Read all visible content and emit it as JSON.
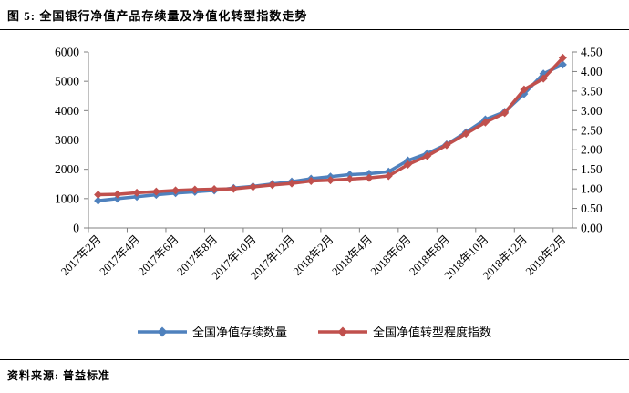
{
  "figure": {
    "title": "图 5: 全国银行净值产品存续量及净值化转型指数走势",
    "source_label": "资料来源: 普益标准"
  },
  "chart_data": {
    "type": "line",
    "title": "全国银行净值产品存续量及净值化转型指数走势",
    "categories": [
      "2017年2月",
      "2017年3月",
      "2017年4月",
      "2017年5月",
      "2017年6月",
      "2017年7月",
      "2017年8月",
      "2017年9月",
      "2017年10月",
      "2017年11月",
      "2017年12月",
      "2018年1月",
      "2018年2月",
      "2018年3月",
      "2018年4月",
      "2018年5月",
      "2018年6月",
      "2018年7月",
      "2018年8月",
      "2018年9月",
      "2018年10月",
      "2018年11月",
      "2018年12月",
      "2019年1月",
      "2019年2月"
    ],
    "x_tick_labels": [
      "2017年2月",
      "2017年4月",
      "2017年6月",
      "2017年8月",
      "2017年10月",
      "2017年12月",
      "2018年2月",
      "2018年4月",
      "2018年6月",
      "2018年8月",
      "2018年10月",
      "2018年12月",
      "2019年2月"
    ],
    "series": [
      {
        "name": "全国净值存续数量",
        "axis": "left",
        "color": "#4F81BD",
        "marker": "diamond",
        "values": [
          930,
          1000,
          1065,
          1130,
          1190,
          1230,
          1280,
          1360,
          1420,
          1500,
          1580,
          1680,
          1750,
          1820,
          1850,
          1920,
          2300,
          2540,
          2850,
          3260,
          3700,
          3960,
          4570,
          5260,
          5570
        ]
      },
      {
        "name": "全国净值转型程度指数",
        "axis": "right",
        "color": "#C0504D",
        "marker": "diamond",
        "values": [
          0.85,
          0.86,
          0.9,
          0.93,
          0.96,
          0.98,
          0.99,
          1.0,
          1.05,
          1.1,
          1.14,
          1.2,
          1.22,
          1.25,
          1.28,
          1.33,
          1.62,
          1.84,
          2.12,
          2.41,
          2.7,
          2.94,
          3.54,
          3.82,
          4.35
        ]
      }
    ],
    "left_axis": {
      "min": 0,
      "max": 6000,
      "step": 1000,
      "tick_labels": [
        "0",
        "1000",
        "2000",
        "3000",
        "4000",
        "5000",
        "6000"
      ]
    },
    "right_axis": {
      "min": 0,
      "max": 4.5,
      "step": 0.5,
      "tick_labels": [
        "0.00",
        "0.50",
        "1.00",
        "1.50",
        "2.00",
        "2.50",
        "3.00",
        "3.50",
        "4.00",
        "4.50"
      ]
    },
    "legend_position": "bottom",
    "grid": false,
    "axis_color": "#808080"
  }
}
